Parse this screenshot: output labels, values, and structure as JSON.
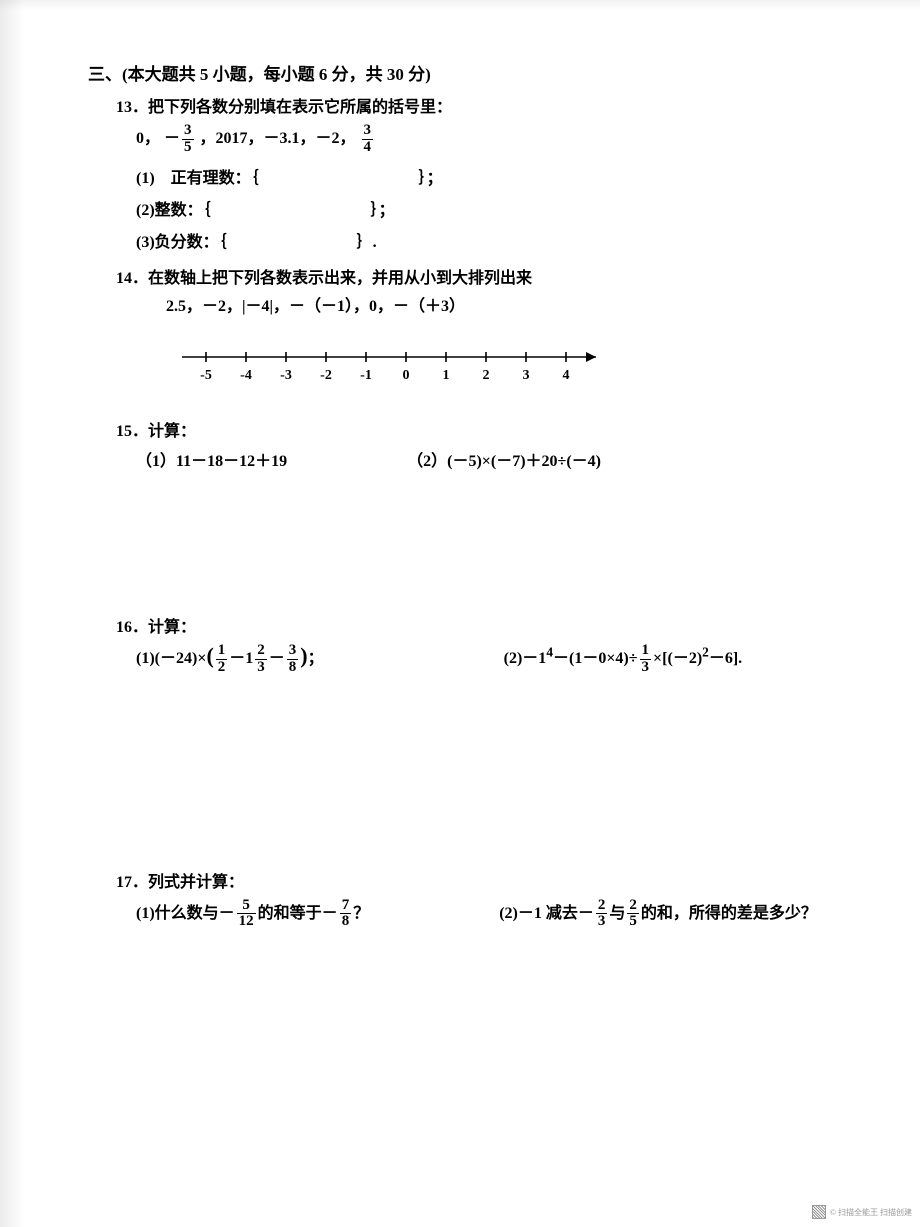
{
  "section_header": "三、(本大题共 5 小题，每小题 6 分，共 30 分)",
  "faint_header_right": "……",
  "p13": {
    "title": "13．把下列各数分别填在表示它所属的括号里：",
    "numbers_line_a": "0，",
    "numbers_line_b": "，2017，－3.1，－2，",
    "frac1_num": "3",
    "frac1_den": "5",
    "frac1_sign": "－",
    "frac2_num": "3",
    "frac2_den": "4",
    "sub1": "(1)　正有理数：｛",
    "sub1_close": "｝；",
    "sub2": "(2)整数：｛",
    "sub2_close": "｝；",
    "sub3": "(3)负分数：｛",
    "sub3_close": "｝."
  },
  "p14": {
    "title": "14．在数轴上把下列各数表示出来，并用从小到大排列出来",
    "list": "2.5，－2，|－4|，－（－1），0，－（＋3）",
    "line": {
      "labels": [
        "-5",
        "-4",
        "-3",
        "-2",
        "-1",
        "0",
        "1",
        "2",
        "3",
        "4"
      ],
      "start": -5,
      "end": 4,
      "tick_step": 1
    }
  },
  "p15": {
    "title": "15．计算：",
    "col1": "（1）11－18－12＋19",
    "col2": "（2）(－5)×(－7)＋20÷(－4)"
  },
  "p16": {
    "title": "16．计算：",
    "col1_a": "(1)(－24)×",
    "col1_b": "；",
    "col1_f1_num": "1",
    "col1_f1_den": "2",
    "col1_mid": "－1",
    "col1_f2_num": "2",
    "col1_f2_den": "3",
    "col1_mid2": "－",
    "col1_f3_num": "3",
    "col1_f3_den": "8",
    "col2_a": "(2)－1",
    "col2_sup": "4",
    "col2_b": "－(1－0×4)÷",
    "col2_f_num": "1",
    "col2_f_den": "3",
    "col2_c": "×[(－2)",
    "col2_sup2": "2",
    "col2_d": "－6]."
  },
  "p17": {
    "title": "17．列式并计算：",
    "col1_a": "(1)什么数与－",
    "col1_f_num": "5",
    "col1_f_den": "12",
    "col1_b": "的和等于－",
    "col1_f2_num": "7",
    "col1_f2_den": "8",
    "col1_c": "？",
    "col2_a": "(2)－1 减去－",
    "col2_f_num": "2",
    "col2_f_den": "3",
    "col2_b": "与",
    "col2_f2_num": "2",
    "col2_f2_den": "5",
    "col2_c": "的和，所得的差是多少？"
  },
  "watermark": "© 扫描全能王 扫描创建"
}
